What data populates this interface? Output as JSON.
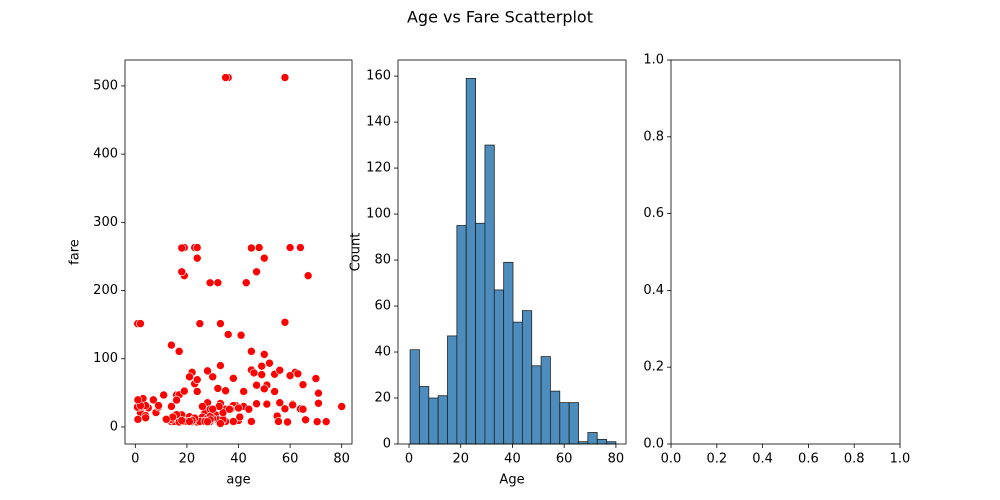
{
  "title": "Age vs Fare Scatterplot",
  "chart_data": [
    {
      "type": "scatter",
      "x_label": "age",
      "y_label": "fare",
      "color": "red",
      "x": [
        22,
        38,
        26,
        35,
        35,
        54,
        2,
        27,
        14,
        4,
        58,
        20,
        39,
        14,
        55,
        2,
        31,
        35,
        34,
        15,
        28,
        8,
        38,
        19,
        40,
        66,
        28,
        42,
        21,
        18,
        14,
        40,
        27,
        3,
        19,
        18,
        7,
        21,
        49,
        29,
        65,
        21,
        28.5,
        5,
        11,
        22,
        45,
        4,
        29,
        19,
        17,
        26,
        32,
        16,
        21,
        26,
        32,
        25,
        0.83,
        30,
        22,
        29,
        28,
        17,
        33,
        16,
        23,
        24,
        29,
        20,
        46,
        26,
        59,
        71,
        23,
        34,
        34,
        28,
        21,
        33,
        37,
        28,
        21,
        38,
        47,
        14.5,
        22,
        20,
        17,
        21,
        70.5,
        29,
        24,
        2,
        21,
        32.5,
        54,
        12,
        24,
        45,
        33,
        20,
        47,
        29,
        25,
        23,
        19,
        37,
        16,
        24,
        22,
        24,
        19,
        18,
        19,
        27,
        9,
        36.5,
        42,
        51,
        22,
        55.5,
        40.5,
        51,
        16,
        30,
        44,
        40,
        26,
        17,
        1,
        9,
        45,
        28,
        61,
        4,
        1,
        21,
        56,
        18,
        50,
        30,
        36,
        35,
        58,
        36,
        60,
        64,
        62,
        63,
        80,
        74,
        70,
        67,
        48,
        45,
        64,
        61,
        49,
        32,
        41,
        50,
        52,
        58,
        65,
        71,
        0.92,
        2,
        25,
        18,
        50,
        56,
        47,
        29,
        33,
        43,
        14,
        60
      ],
      "values": [
        7.25,
        71.3,
        7.9,
        53.1,
        8.05,
        51.9,
        21.1,
        11.1,
        30.1,
        16.7,
        26.6,
        8.05,
        31.3,
        7.85,
        16,
        29.1,
        18,
        26,
        13,
        8.03,
        35.5,
        21.1,
        31.4,
        263,
        27.7,
        10.5,
        82.2,
        52,
        8.05,
        18,
        11.2,
        9.5,
        21,
        41.6,
        7.9,
        17.8,
        39.7,
        7.8,
        76.7,
        26,
        61.98,
        10.5,
        7.23,
        27.9,
        46.9,
        80,
        83.5,
        31.3,
        7.75,
        7.9,
        7.23,
        8.66,
        10.5,
        46.9,
        73.5,
        14.45,
        56.5,
        7.65,
        29,
        12.48,
        9,
        9.5,
        7.88,
        47.1,
        34.38,
        18,
        263,
        263,
        7.9,
        9.2,
        79.2,
        8.05,
        7.25,
        34.7,
        63.4,
        10.5,
        21,
        12.65,
        11.5,
        5,
        26,
        7.25,
        7.25,
        8,
        227.5,
        14.45,
        7.5,
        9.8,
        7.2,
        7.75,
        7.75,
        15.2,
        247.5,
        31.3,
        15,
        30.1,
        77.3,
        11.25,
        7.14,
        8.05,
        90,
        8.05,
        61.2,
        10.5,
        7.9,
        13,
        53.1,
        26,
        39.7,
        69.3,
        7.8,
        52,
        221.8,
        227.5,
        52.55,
        8.05,
        29.12,
        26,
        30,
        33.5,
        9.5,
        8.05,
        14.5,
        61.38,
        39.4,
        26,
        26,
        27.72,
        30,
        110.88,
        39.69,
        31.39,
        110.88,
        7.75,
        33.5,
        13.42,
        11.13,
        8.05,
        35.5,
        9.5,
        55.9,
        73.5,
        512.3,
        512.3,
        512.3,
        135.63,
        263,
        263,
        80,
        77.96,
        30,
        7.78,
        71,
        221.78,
        263,
        262.4,
        26.55,
        32.3,
        89.1,
        211.5,
        134.5,
        247.5,
        93.5,
        153.46,
        26,
        49.5,
        151.55,
        151.55,
        151.55,
        262.375,
        106.4,
        83.16,
        34,
        211.34,
        151.55,
        211.5,
        120,
        75.25
      ],
      "xlim": [
        -4,
        84
      ],
      "ylim": [
        -25,
        538
      ],
      "xticks": [
        0,
        20,
        40,
        60,
        80
      ],
      "yticks": [
        0,
        100,
        200,
        300,
        400,
        500
      ]
    },
    {
      "type": "histogram",
      "x_label": "Age",
      "y_label": "Count",
      "color": "#4c8dbd",
      "bins": [
        0.42,
        4.04,
        7.65,
        11.27,
        14.89,
        18.51,
        22.12,
        25.74,
        29.36,
        32.98,
        36.6,
        40.21,
        43.83,
        47.45,
        51.07,
        54.68,
        58.3,
        61.92,
        65.54,
        69.15,
        72.77,
        76.39,
        80
      ],
      "values": [
        41,
        25,
        20,
        21,
        47,
        95,
        159,
        96,
        130,
        67,
        79,
        53,
        58,
        34,
        38,
        23,
        18,
        18,
        1,
        5,
        2,
        1
      ],
      "xlim": [
        -4.25,
        83.9
      ],
      "ylim": [
        0,
        167
      ],
      "xticks": [
        0,
        20,
        40,
        60,
        80
      ],
      "yticks": [
        0,
        20,
        40,
        60,
        80,
        100,
        120,
        140,
        160
      ]
    },
    {
      "type": "empty",
      "xlim": [
        0,
        1
      ],
      "ylim": [
        0,
        1
      ],
      "xticks": [
        {
          "value": 0,
          "label": "0.0"
        },
        {
          "value": 0.2,
          "label": "0.2"
        },
        {
          "value": 0.4,
          "label": "0.4"
        },
        {
          "value": 0.6,
          "label": "0.6"
        },
        {
          "value": 0.8,
          "label": "0.8"
        },
        {
          "value": 1,
          "label": "1.0"
        }
      ],
      "yticks": [
        {
          "value": 0,
          "label": "0.0"
        },
        {
          "value": 0.2,
          "label": "0.2"
        },
        {
          "value": 0.4,
          "label": "0.4"
        },
        {
          "value": 0.6,
          "label": "0.6"
        },
        {
          "value": 0.8,
          "label": "0.8"
        },
        {
          "value": 1,
          "label": "1.0"
        }
      ]
    }
  ]
}
